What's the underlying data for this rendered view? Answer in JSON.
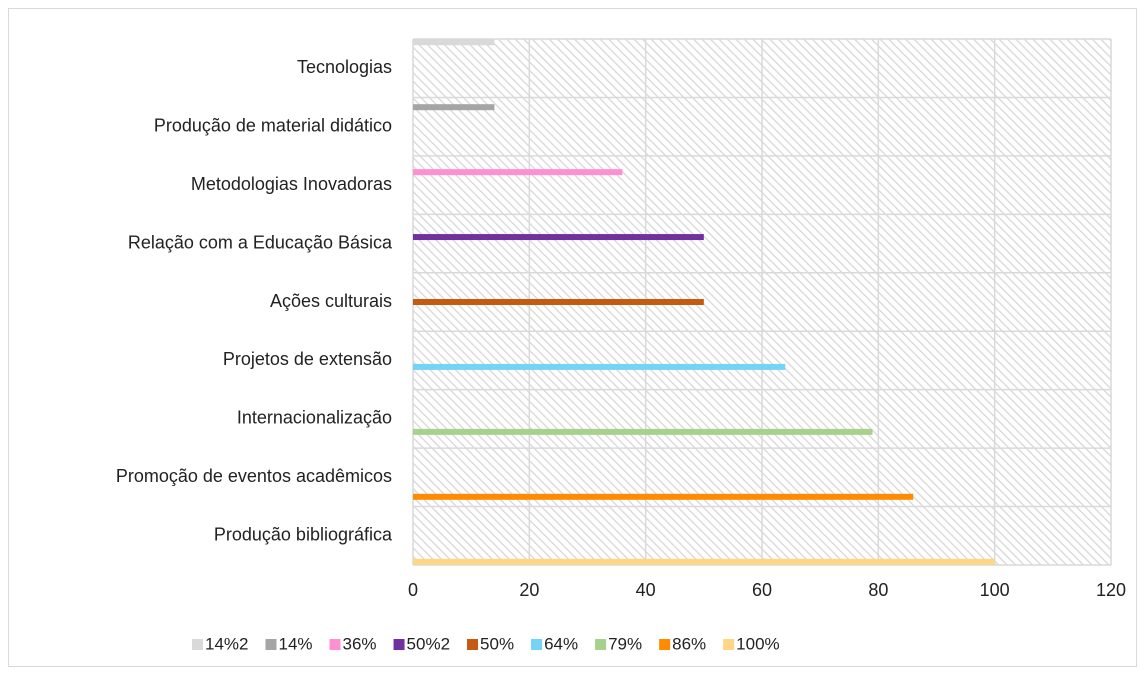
{
  "chart_data": {
    "type": "bar",
    "orientation": "horizontal",
    "categories": [
      "Tecnologias",
      "Produção de material didático",
      "Metodologias Inovadoras",
      "Relação com a Educação Básica",
      "Ações culturais",
      "Projetos de extensão",
      "Internacionalização",
      "Promoção de eventos acadêmicos",
      "Produção bibliográfica"
    ],
    "series": [
      {
        "name": "14%2",
        "color": "#d9d9d9",
        "values": [
          14,
          null,
          null,
          null,
          null,
          null,
          null,
          null,
          null
        ]
      },
      {
        "name": "14%",
        "color": "#a5a5a5",
        "values": [
          null,
          14,
          null,
          null,
          null,
          null,
          null,
          null,
          null
        ]
      },
      {
        "name": "36%",
        "color": "#ff8fd3",
        "values": [
          null,
          null,
          36,
          null,
          null,
          null,
          null,
          null,
          null
        ]
      },
      {
        "name": "50%2",
        "color": "#7030a0",
        "values": [
          null,
          null,
          null,
          50,
          null,
          null,
          null,
          null,
          null
        ]
      },
      {
        "name": "50%",
        "color": "#c55a11",
        "values": [
          null,
          null,
          null,
          null,
          50,
          null,
          null,
          null,
          null
        ]
      },
      {
        "name": "64%",
        "color": "#75d4f5",
        "values": [
          null,
          null,
          null,
          null,
          null,
          64,
          null,
          null,
          null
        ]
      },
      {
        "name": "79%",
        "color": "#a9d18e",
        "values": [
          null,
          null,
          null,
          null,
          null,
          null,
          79,
          null,
          null
        ]
      },
      {
        "name": "86%",
        "color": "#ff8c00",
        "values": [
          null,
          null,
          null,
          null,
          null,
          null,
          null,
          86,
          null
        ]
      },
      {
        "name": "100%",
        "color": "#ffd685",
        "values": [
          null,
          null,
          null,
          null,
          null,
          null,
          null,
          null,
          100
        ]
      }
    ],
    "xlim": [
      0,
      120
    ],
    "xticks": [
      0,
      20,
      40,
      60,
      80,
      100,
      120
    ],
    "grid": true,
    "legend": "bottom"
  }
}
